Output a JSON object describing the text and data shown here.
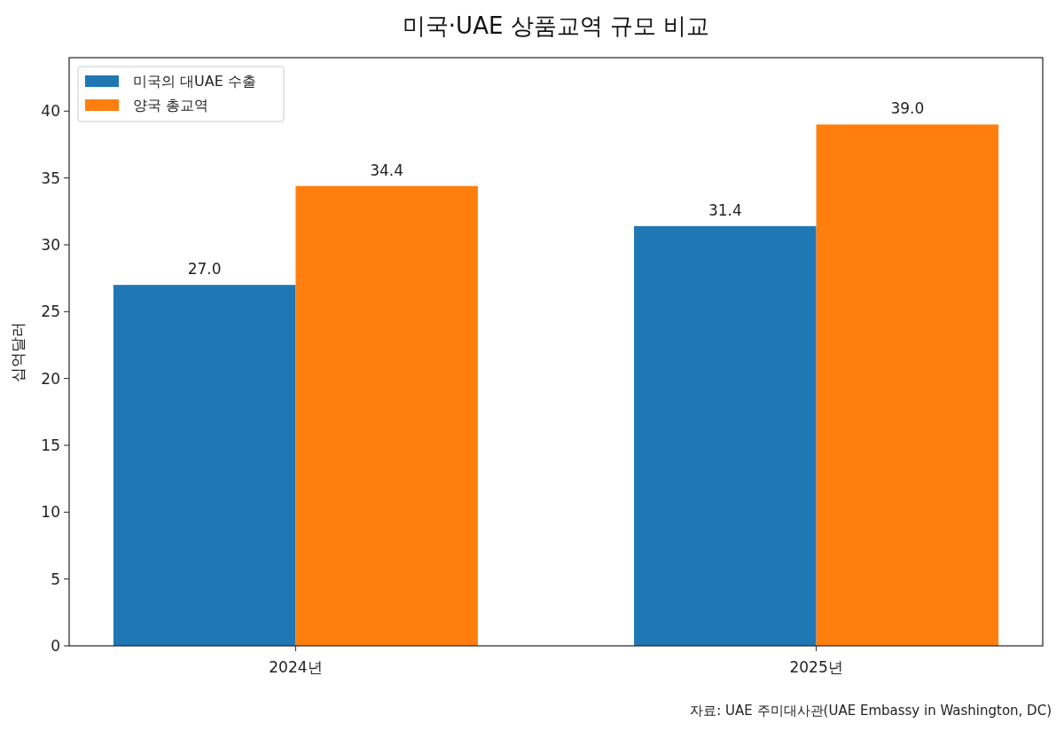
{
  "chart_data": {
    "type": "bar",
    "title": "미국·UAE 상품교역 규모 비교",
    "ylabel": "십억달러",
    "categories": [
      "2024년",
      "2025년"
    ],
    "series": [
      {
        "name": "미국의 대UAE 수출",
        "color": "#1f77b4",
        "values": [
          27.0,
          31.4
        ],
        "value_labels": [
          "27.0",
          "31.4"
        ]
      },
      {
        "name": "양국 총교역",
        "color": "#ff7f0e",
        "values": [
          34.4,
          39.0
        ],
        "value_labels": [
          "34.4",
          "39.0"
        ]
      }
    ],
    "ylim": [
      0,
      44
    ],
    "yticks": [
      0,
      5,
      10,
      15,
      20,
      25,
      30,
      35,
      40
    ],
    "legend": "top left",
    "grid": false,
    "annotations": [
      "자료: UAE 주미대사관(UAE Embassy in Washington, DC)"
    ]
  }
}
